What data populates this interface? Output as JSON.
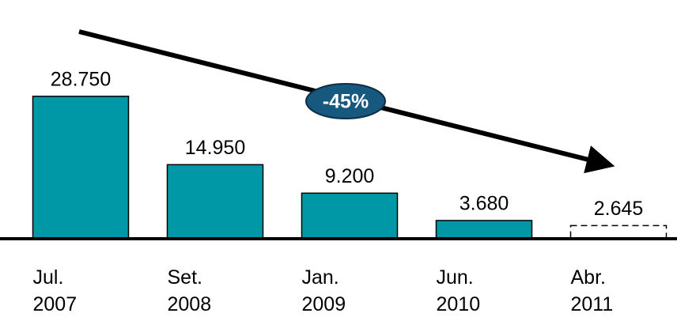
{
  "chart_data": {
    "type": "bar",
    "categories": [
      "Jul.\n2007",
      "Set.\n2008",
      "Jan.\n2009",
      "Jun.\n2010",
      "Abr.\n2011"
    ],
    "values": [
      28750,
      14950,
      9200,
      3680,
      2645
    ],
    "value_labels": [
      "28.750",
      "14.950",
      "9.200",
      "3.680",
      "2.645"
    ],
    "color": "#0098a6",
    "projected": [
      false,
      false,
      false,
      false,
      true
    ],
    "ylim": [
      0,
      30000
    ],
    "annotation": "-45%"
  }
}
